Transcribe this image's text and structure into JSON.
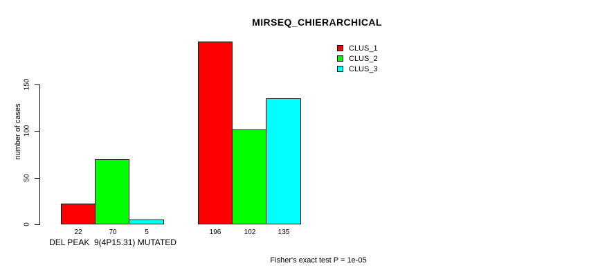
{
  "chart_data": {
    "type": "bar",
    "title": "MIRSEQ_CHIERARCHICAL",
    "ylabel": "number of cases",
    "xlabel": "",
    "yticks": [
      0,
      50,
      100,
      150
    ],
    "ylim": [
      0,
      200
    ],
    "grid": false,
    "legend_position": "top-right",
    "bar_value_labels": true,
    "series": [
      {
        "name": "CLUS_1",
        "color": "#ff0000"
      },
      {
        "name": "CLUS_2",
        "color": "#00ff00"
      },
      {
        "name": "CLUS_3",
        "color": "#00ffff"
      }
    ],
    "groups": [
      {
        "label": "DEL PEAK  9(4P15.31) MUTATED",
        "values": [
          22,
          70,
          5
        ]
      },
      {
        "label": "",
        "values": [
          196,
          102,
          135
        ]
      }
    ],
    "footnote": "Fisher's exact test P = 1e-05",
    "colors": {
      "background": "#ffffff",
      "axis": "#000000",
      "bar_border": "#000000",
      "text": "#000000"
    }
  }
}
